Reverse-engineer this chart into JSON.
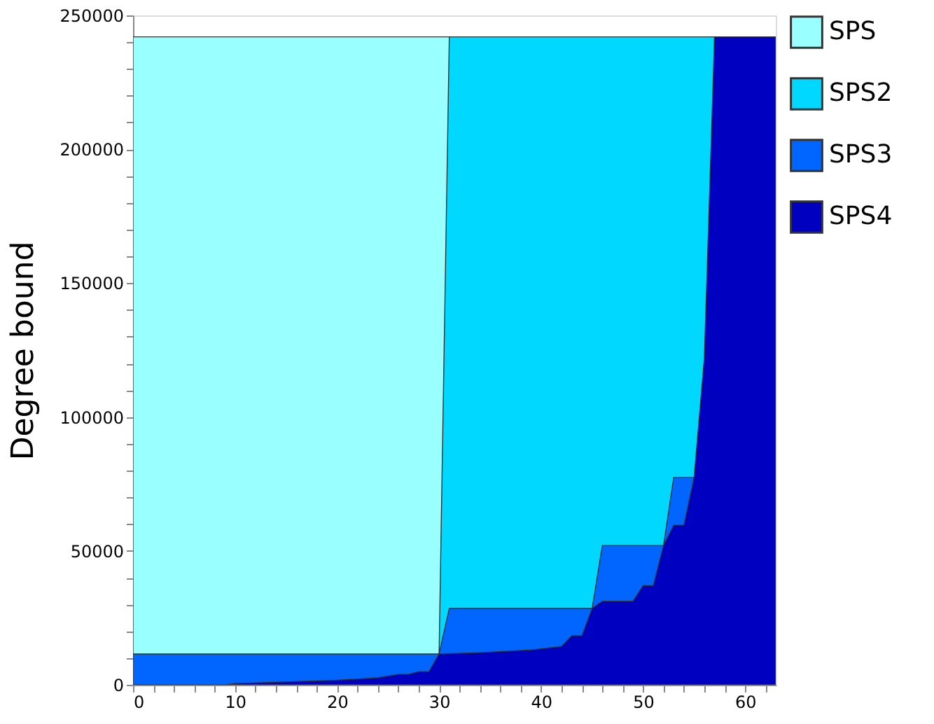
{
  "chart_data": {
    "type": "area",
    "ylabel": "Degree bound",
    "xlim": [
      0,
      63
    ],
    "ylim": [
      0,
      250000
    ],
    "xticks": [
      0,
      {
        "value": 2,
        "label": null
      },
      {
        "value": 4,
        "label": null
      },
      {
        "value": 6,
        "label": null
      },
      {
        "value": 8,
        "label": null
      },
      10,
      {
        "value": 12,
        "label": null
      },
      {
        "value": 14,
        "label": null
      },
      {
        "value": 16,
        "label": null
      },
      {
        "value": 18,
        "label": null
      },
      20,
      {
        "value": 22,
        "label": null
      },
      {
        "value": 24,
        "label": null
      },
      {
        "value": 26,
        "label": null
      },
      {
        "value": 28,
        "label": null
      },
      30,
      {
        "value": 32,
        "label": null
      },
      {
        "value": 34,
        "label": null
      },
      {
        "value": 36,
        "label": null
      },
      {
        "value": 38,
        "label": null
      },
      40,
      {
        "value": 42,
        "label": null
      },
      {
        "value": 44,
        "label": null
      },
      {
        "value": 46,
        "label": null
      },
      {
        "value": 48,
        "label": null
      },
      50,
      {
        "value": 52,
        "label": null
      },
      {
        "value": 54,
        "label": null
      },
      {
        "value": 56,
        "label": null
      },
      {
        "value": 58,
        "label": null
      },
      60,
      {
        "value": 62,
        "label": null
      }
    ],
    "yticks": [
      0,
      {
        "value": 10000,
        "label": null
      },
      {
        "value": 20000,
        "label": null
      },
      {
        "value": 30000,
        "label": null
      },
      {
        "value": 40000,
        "label": null
      },
      50000,
      {
        "value": 60000,
        "label": null
      },
      {
        "value": 70000,
        "label": null
      },
      {
        "value": 80000,
        "label": null
      },
      {
        "value": 90000,
        "label": null
      },
      100000,
      {
        "value": 110000,
        "label": null
      },
      {
        "value": 120000,
        "label": null
      },
      {
        "value": 130000,
        "label": null
      },
      {
        "value": 140000,
        "label": null
      },
      150000,
      {
        "value": 160000,
        "label": null
      },
      {
        "value": 170000,
        "label": null
      },
      {
        "value": 180000,
        "label": null
      },
      {
        "value": 190000,
        "label": null
      },
      200000,
      {
        "value": 210000,
        "label": null
      },
      {
        "value": 220000,
        "label": null
      },
      {
        "value": 230000,
        "label": null
      },
      {
        "value": 240000,
        "label": null
      },
      250000
    ],
    "grid": false,
    "legend": "right",
    "series": [
      {
        "name": "SPS",
        "color": "#99ffff",
        "x": [
          0,
          31
        ],
        "values": [
          242000,
          242000
        ]
      },
      {
        "name": "SPS2",
        "color": "#00d8ff",
        "x": [
          30,
          31,
          57
        ],
        "values": [
          11500,
          242000,
          242000
        ]
      },
      {
        "name": "SPS3",
        "color": "#0066ff",
        "x": [
          0,
          30,
          31,
          45,
          46,
          52,
          53,
          55
        ],
        "values": [
          11500,
          11500,
          28500,
          28500,
          52000,
          52000,
          77500,
          77500
        ]
      },
      {
        "name": "SPS4",
        "color": "#0000c0",
        "x": [
          0,
          9,
          10,
          20,
          24,
          26,
          27,
          28,
          29,
          30,
          34,
          39,
          42,
          43,
          44,
          45,
          46,
          49,
          50,
          51,
          52,
          53,
          54,
          55,
          56,
          57,
          63
        ],
        "values": [
          0,
          0,
          500,
          1700,
          2600,
          3900,
          3900,
          4900,
          4900,
          11500,
          12000,
          13000,
          14300,
          18300,
          18300,
          28500,
          31200,
          31200,
          37000,
          37000,
          52000,
          59600,
          59600,
          77500,
          122000,
          242000,
          242000
        ]
      }
    ]
  }
}
